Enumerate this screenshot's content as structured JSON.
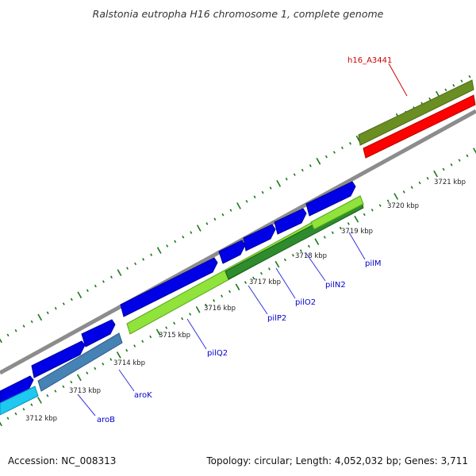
{
  "title": "Ralstonia eutropha H16 chromosome 1, complete genome",
  "footer": {
    "accession": "Accession: NC_008313",
    "summary": "Topology: circular; Length: 4,052,032 bp; Genes: 3,711"
  },
  "scale_labels": [
    "3712 kbp",
    "3713 kbp",
    "3714 kbp",
    "3715 kbp",
    "3716 kbp",
    "3717 kbp",
    "3718 kbp",
    "3719 kbp",
    "3720 kbp",
    "3721 kbp"
  ],
  "gene_labels": [
    "aroB",
    "aroK",
    "pilQ2",
    "pilP2",
    "pilO2",
    "pilN2",
    "pilM",
    "h16_A3441"
  ],
  "colors": {
    "forward_cds": "#0000e6",
    "backbone": "#8c8c8c",
    "olive_feature": "#6b8e23",
    "red_feature": "#ff0000",
    "light_green_feature": "#8fe33a",
    "dark_green_feature": "#2e8b2e",
    "steel_blue_feature": "#4682b4",
    "light_blue_feature": "#1ec8f0",
    "tick": "#1a7a1a",
    "label_blue": "#0000cc",
    "label_red": "#cc0000"
  }
}
